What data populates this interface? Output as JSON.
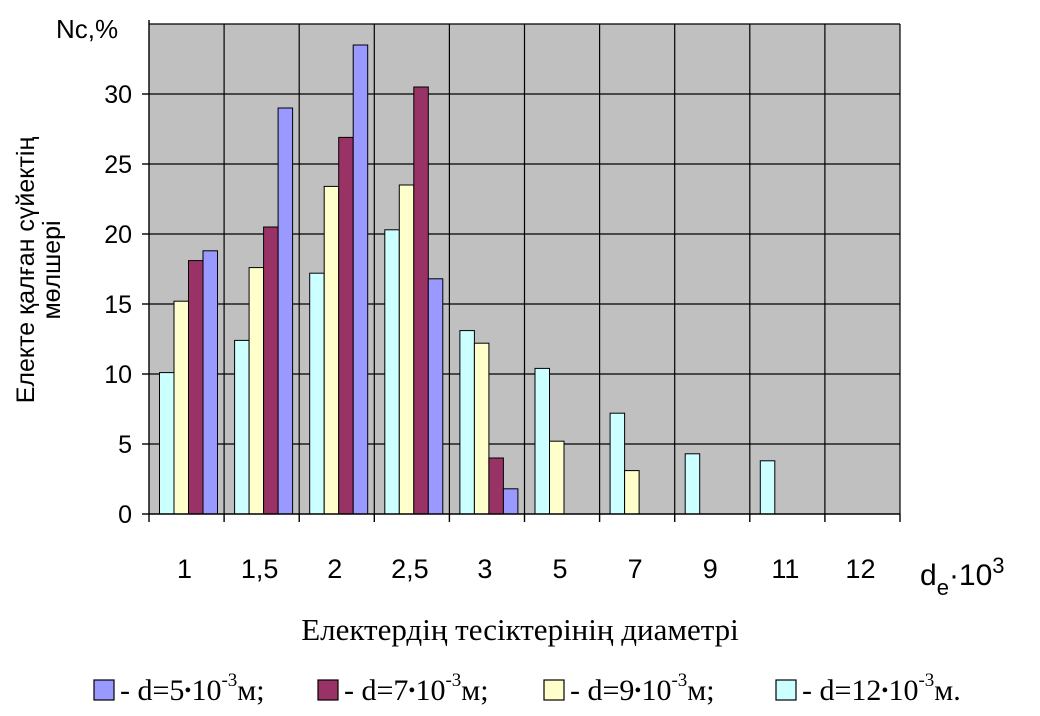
{
  "chart_data": {
    "type": "bar",
    "categories": [
      "1",
      "1,5",
      "2",
      "2,5",
      "3",
      "5",
      "7",
      "9",
      "11",
      "12"
    ],
    "series": [
      {
        "name": "d=12•10-3м.",
        "color": "#ccffff",
        "values": [
          10.1,
          12.4,
          17.2,
          20.3,
          13.1,
          10.4,
          7.2,
          4.3,
          3.8,
          null
        ]
      },
      {
        "name": "d=9•10-3м",
        "color": "#ffffcc",
        "values": [
          15.2,
          17.6,
          23.4,
          23.5,
          12.2,
          5.2,
          3.1,
          null,
          null,
          null
        ]
      },
      {
        "name": "d=7•10-3м",
        "color": "#993366",
        "values": [
          18.1,
          20.5,
          26.9,
          30.5,
          4.0,
          null,
          null,
          null,
          null,
          null
        ]
      },
      {
        "name": "d=5•10-3м",
        "color": "#9999ff",
        "values": [
          18.8,
          29.0,
          33.5,
          16.8,
          1.8,
          null,
          null,
          null,
          null,
          null
        ]
      }
    ],
    "y_ticks": [
      "0",
      "5",
      "10",
      "15",
      "20",
      "25",
      "30"
    ],
    "ylim": [
      0,
      35
    ],
    "y_tick_step": 5,
    "grid": true,
    "plot_background": "#c0c0c0",
    "y_title_top": "Nс,%",
    "ylabel_line1": "Електе қалған сүйектің",
    "ylabel_line2": "мөлшері",
    "x_title_right": {
      "main": "d",
      "sub": "e",
      "dot": "·10",
      "sup": "3"
    },
    "xlabel": "Електердің тесіктерінің диаметрі",
    "legend": {
      "placement": "bottom",
      "items": [
        {
          "prefix": "- d=5",
          "sep": "•",
          "base": "10",
          "exp": "-3",
          "unit": "м;",
          "color": "#9999ff"
        },
        {
          "prefix": "- d=7",
          "sep": "•",
          "base": "10",
          "exp": "-3",
          "unit": "м;",
          "color": "#993366"
        },
        {
          "prefix": "- d=9",
          "sep": "•",
          "base": "10",
          "exp": "-3",
          "unit": "м;",
          "color": "#ffffcc"
        },
        {
          "prefix": "- d=12",
          "sep": "•",
          "base": "10",
          "exp": "-3",
          "unit": "м.",
          "color": "#ccffff"
        }
      ]
    }
  }
}
